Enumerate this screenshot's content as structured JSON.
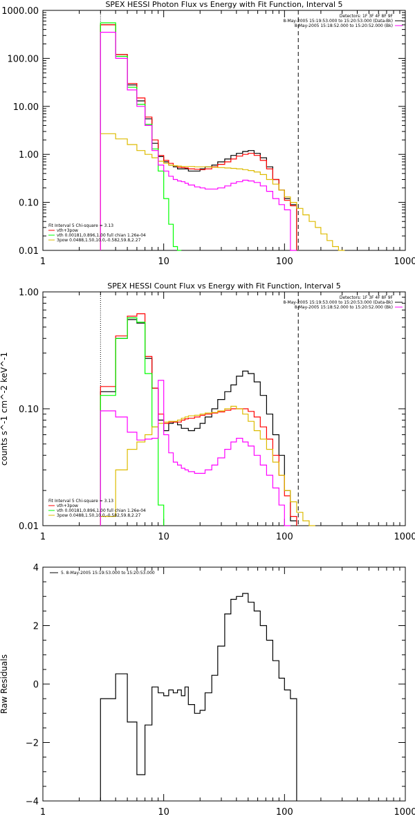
{
  "colors": {
    "black": "#000000",
    "red": "#ff0000",
    "green": "#00ff00",
    "magenta": "#ff00ff",
    "yellow": "#ddbb00"
  },
  "chart_data": [
    {
      "type": "line",
      "title": "SPEX HESSI Photon Flux vs Energy with Fit Function, Interval 5",
      "xlabel": "",
      "ylabel": "",
      "xscale": "log",
      "yscale": "log",
      "xlim": [
        1,
        1000
      ],
      "ylim": [
        0.01,
        1000
      ],
      "xticks": [
        {
          "v": 1,
          "label": "1"
        },
        {
          "v": 10,
          "label": "10"
        },
        {
          "v": 100,
          "label": "100"
        },
        {
          "v": 1000,
          "label": "1000"
        }
      ],
      "yticks": [
        {
          "v": 0.01,
          "label": "0.01"
        },
        {
          "v": 0.1,
          "label": "0.10"
        },
        {
          "v": 1,
          "label": "1.00"
        },
        {
          "v": 10,
          "label": "10.00"
        },
        {
          "v": 100,
          "label": "100.00"
        },
        {
          "v": 1000,
          "label": "1000.00"
        }
      ],
      "vlines": [
        {
          "x": 3,
          "style": "dotted"
        },
        {
          "x": 130,
          "style": "dashed"
        }
      ],
      "legend_top": [
        {
          "text": "Detectors: 1F 3F 4F 8F 9F",
          "color": ""
        },
        {
          "text": "8-May-2005 15:19:53.000 to 15:20:53.000 (Data-Bk)",
          "color": "#000000"
        },
        {
          "text": "8-May-2005 15:18:52.000 to 15:20:52.000 (Bk)",
          "color": "#ff00ff"
        }
      ],
      "legend_bottom": [
        {
          "text": "Fit Interval 5    Chi-square = 3.13",
          "color": ""
        },
        {
          "text": "vth+3pow",
          "color": "#ff0000"
        },
        {
          "text": "vth 0.00181,0.896,1.00    full chian 1.26e-04",
          "color": "#00ff00"
        },
        {
          "text": "3pow 0.0488,1.50,10.0,-0.582,59.8,2.27",
          "color": "#ddbb00"
        }
      ],
      "edges": [
        3,
        3.5,
        4,
        5,
        6,
        7,
        8,
        9,
        10,
        11,
        12,
        13,
        14,
        15,
        16,
        18,
        20,
        22,
        25,
        28,
        32,
        36,
        40,
        45,
        50,
        56,
        63,
        71,
        80,
        90,
        100,
        112,
        126,
        142,
        160,
        180,
        200,
        225,
        250,
        280,
        315
      ],
      "series": [
        {
          "name": "",
          "color": "#000000",
          "values": [
            500,
            500,
            120,
            28,
            13,
            5.5,
            1.7,
            0.9,
            0.7,
            0.6,
            0.55,
            0.5,
            0.5,
            0.5,
            0.45,
            0.45,
            0.5,
            0.55,
            0.6,
            0.7,
            0.8,
            0.95,
            1.05,
            1.15,
            1.2,
            1.05,
            0.85,
            0.55,
            0.3,
            0.18,
            0.12,
            0.09
          ]
        },
        {
          "name": "vth+3pow",
          "color": "#ff0000",
          "values": [
            500,
            500,
            120,
            30,
            15,
            6,
            2,
            0.95,
            0.75,
            0.65,
            0.58,
            0.54,
            0.53,
            0.52,
            0.5,
            0.49,
            0.48,
            0.5,
            0.55,
            0.62,
            0.7,
            0.8,
            0.92,
            1.0,
            1.05,
            0.95,
            0.75,
            0.5,
            0.3,
            0.18,
            0.11,
            0.085
          ]
        },
        {
          "name": "vth",
          "color": "#00ff00",
          "values": [
            550,
            550,
            110,
            25,
            11,
            4.2,
            1.3,
            0.45,
            0.12,
            0.035,
            0.012,
            0.005
          ]
        },
        {
          "name": "3pow",
          "color": "#ddbb00",
          "values": [
            2.7,
            2.7,
            2.1,
            1.6,
            1.2,
            1.0,
            0.85,
            0.72,
            0.65,
            0.6,
            0.58,
            0.57,
            0.56,
            0.56,
            0.56,
            0.55,
            0.55,
            0.55,
            0.54,
            0.53,
            0.52,
            0.51,
            0.5,
            0.48,
            0.46,
            0.43,
            0.38,
            0.3,
            0.24,
            0.18,
            0.13,
            0.1,
            0.075,
            0.055,
            0.04,
            0.03,
            0.022,
            0.016,
            0.012,
            0.009
          ]
        },
        {
          "name": "Bk",
          "color": "#ff00ff",
          "values": [
            350,
            350,
            100,
            22,
            10,
            4,
            1.2,
            0.6,
            0.45,
            0.35,
            0.3,
            0.28,
            0.27,
            0.25,
            0.23,
            0.21,
            0.2,
            0.19,
            0.19,
            0.2,
            0.22,
            0.25,
            0.27,
            0.29,
            0.28,
            0.26,
            0.22,
            0.17,
            0.12,
            0.09,
            0.07,
            0.006
          ]
        }
      ]
    },
    {
      "type": "line",
      "title": "SPEX HESSI Count Flux vs Energy with Fit Function, Interval 5",
      "xlabel": "",
      "ylabel": "counts s^-1 cm^-2 keV^-1",
      "xscale": "log",
      "yscale": "log",
      "xlim": [
        1,
        1000
      ],
      "ylim": [
        0.01,
        1
      ],
      "xticks": [
        {
          "v": 1,
          "label": "1"
        },
        {
          "v": 10,
          "label": "10"
        },
        {
          "v": 100,
          "label": "100"
        },
        {
          "v": 1000,
          "label": "1000"
        }
      ],
      "yticks": [
        {
          "v": 0.01,
          "label": "0.01"
        },
        {
          "v": 0.1,
          "label": "0.10"
        },
        {
          "v": 1,
          "label": "1.00"
        }
      ],
      "vlines": [
        {
          "x": 3,
          "style": "dotted"
        },
        {
          "x": 130,
          "style": "dashed"
        }
      ],
      "legend_top": [
        {
          "text": "Detectors: 1F 3F 4F 8F 9F",
          "color": ""
        },
        {
          "text": "8-May-2005 15:19:53.000 to 15:20:53.000 (Data-Bk)",
          "color": "#000000"
        },
        {
          "text": "8-May-2005 15:18:52.000 to 15:20:52.000 (Bk)",
          "color": "#ff00ff"
        }
      ],
      "legend_bottom": [
        {
          "text": "Fit Interval 5    Chi-square = 3.13",
          "color": ""
        },
        {
          "text": "vth+3pow",
          "color": "#ff0000"
        },
        {
          "text": "vth 0.00181,0.896,1.00    full chian 1.26e-04",
          "color": "#00ff00"
        },
        {
          "text": "3pow 0.0488,1.50,10.0,-0.582,59.8,2.27",
          "color": "#ddbb00"
        }
      ],
      "edges": [
        3,
        4,
        5,
        6,
        7,
        8,
        9,
        10,
        11,
        12,
        13,
        14,
        15,
        16,
        18,
        20,
        22,
        25,
        28,
        32,
        36,
        40,
        45,
        50,
        56,
        63,
        71,
        80,
        90,
        100,
        112,
        126,
        142,
        160,
        180
      ],
      "series": [
        {
          "name": "",
          "color": "#000000",
          "values": [
            0.14,
            0.4,
            0.58,
            0.54,
            0.27,
            0.15,
            0.08,
            0.065,
            0.075,
            0.077,
            0.073,
            0.068,
            0.068,
            0.065,
            0.068,
            0.075,
            0.085,
            0.1,
            0.12,
            0.14,
            0.16,
            0.19,
            0.21,
            0.2,
            0.17,
            0.13,
            0.09,
            0.06,
            0.04,
            0.02,
            0.011
          ]
        },
        {
          "name": "vth+3pow",
          "color": "#ff0000",
          "values": [
            0.155,
            0.42,
            0.62,
            0.65,
            0.28,
            0.15,
            0.09,
            0.075,
            0.077,
            0.077,
            0.077,
            0.08,
            0.082,
            0.083,
            0.085,
            0.088,
            0.09,
            0.092,
            0.094,
            0.097,
            0.1,
            0.1,
            0.1,
            0.095,
            0.085,
            0.07,
            0.055,
            0.04,
            0.027,
            0.018,
            0.012
          ]
        },
        {
          "name": "vth",
          "color": "#00ff00",
          "values": [
            0.13,
            0.4,
            0.6,
            0.55,
            0.2,
            0.07,
            0.015
          ]
        },
        {
          "name": "3pow",
          "color": "#ddbb00",
          "values": [
            0.012,
            0.03,
            0.045,
            0.052,
            0.06,
            0.07,
            0.075,
            0.077,
            0.078,
            0.078,
            0.08,
            0.083,
            0.085,
            0.087,
            0.088,
            0.09,
            0.092,
            0.093,
            0.096,
            0.1,
            0.105,
            0.1,
            0.09,
            0.078,
            0.065,
            0.055,
            0.045,
            0.035,
            0.027,
            0.02,
            0.016,
            0.013,
            0.011,
            0.009
          ]
        },
        {
          "name": "Bk",
          "color": "#ff00ff",
          "values": [
            0.096,
            0.085,
            0.063,
            0.054,
            0.055,
            0.056,
            0.175,
            0.06,
            0.042,
            0.035,
            0.033,
            0.031,
            0.03,
            0.029,
            0.028,
            0.028,
            0.03,
            0.033,
            0.038,
            0.045,
            0.052,
            0.056,
            0.052,
            0.048,
            0.04,
            0.033,
            0.027,
            0.021,
            0.015,
            0.006
          ]
        }
      ]
    },
    {
      "type": "line",
      "title": "",
      "xlabel": "",
      "ylabel": "Raw Residuals",
      "xscale": "log",
      "yscale": "linear",
      "xlim": [
        1,
        1000
      ],
      "ylim": [
        -4,
        4
      ],
      "xticks": [
        {
          "v": 1,
          "label": "1"
        },
        {
          "v": 10,
          "label": "10"
        },
        {
          "v": 100,
          "label": "100"
        },
        {
          "v": 1000,
          "label": "1000"
        }
      ],
      "yticks": [
        {
          "v": -4,
          "label": "−4"
        },
        {
          "v": -2,
          "label": "−2"
        },
        {
          "v": 0,
          "label": "0"
        },
        {
          "v": 2,
          "label": "2"
        },
        {
          "v": 4,
          "label": "4"
        }
      ],
      "legend_top": [
        {
          "text": "5.  8-May-2005 15:19:53.000 to 15:20:53.000",
          "color": "#000000"
        }
      ],
      "edges": [
        3,
        4,
        5,
        6,
        7,
        8,
        9,
        10,
        11,
        12,
        13,
        14,
        15,
        16,
        18,
        20,
        22,
        25,
        28,
        32,
        36,
        40,
        45,
        50,
        56,
        63,
        71,
        80,
        90,
        100,
        112,
        126
      ],
      "series": [
        {
          "name": "5.  8-May-2005 15:19:53.000 to 15:20:53.000",
          "color": "#000000",
          "values": [
            -0.5,
            0.35,
            -1.3,
            -3.1,
            -1.4,
            -0.1,
            -0.3,
            -0.4,
            -0.2,
            -0.3,
            -0.2,
            -0.4,
            -0.1,
            -0.7,
            -1.0,
            -0.9,
            -0.3,
            0.3,
            1.3,
            2.4,
            2.9,
            3.0,
            3.1,
            2.8,
            2.5,
            2.0,
            1.5,
            0.8,
            0.2,
            -0.2,
            -0.5
          ]
        }
      ]
    }
  ]
}
